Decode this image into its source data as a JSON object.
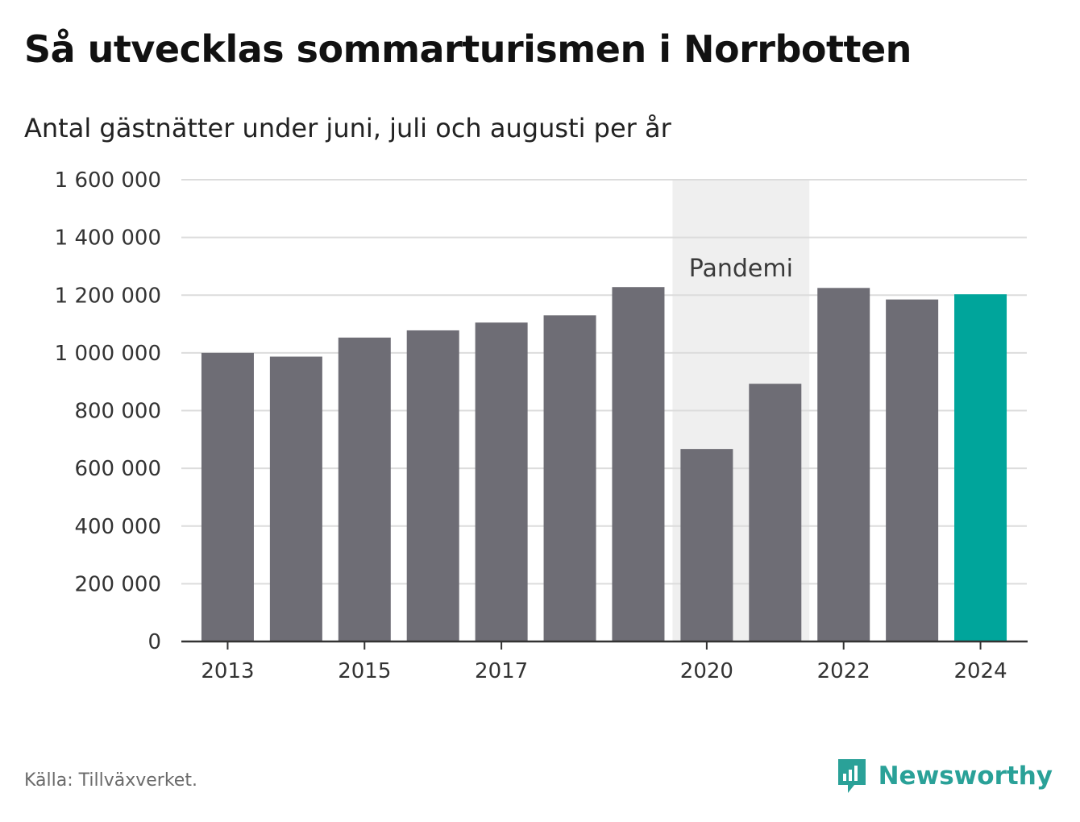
{
  "header": {
    "title": "Så utvecklas sommarturismen i Norrbotten",
    "subtitle": "Antal gästnätter under juni, juli och augusti per år"
  },
  "footer": {
    "source": "Källa: Tillväxverket.",
    "brand": "Newsworthy",
    "brand_icon": "bar-chart-speech-bubble-icon"
  },
  "colors": {
    "bar": "#6e6d75",
    "highlight": "#00a59b",
    "shade": "#efefef",
    "grid": "#dcdcdc",
    "axis": "#333333",
    "brand": "#2aa198"
  },
  "chart_data": {
    "type": "bar",
    "categories": [
      "2013",
      "2014",
      "2015",
      "2016",
      "2017",
      "2018",
      "2019",
      "2020",
      "2021",
      "2022",
      "2023",
      "2024"
    ],
    "values": [
      1000000,
      987000,
      1053000,
      1078000,
      1105000,
      1130000,
      1228000,
      667000,
      893000,
      1225000,
      1185000,
      1203000
    ],
    "highlight_category": "2024",
    "xtick_labels": [
      "2013",
      "2015",
      "2017",
      "2020",
      "2022",
      "2024"
    ],
    "ylim": [
      0,
      1600000
    ],
    "yticks": [
      0,
      200000,
      400000,
      600000,
      800000,
      1000000,
      1200000,
      1400000,
      1600000
    ],
    "ytick_labels": [
      "0",
      "200 000",
      "400 000",
      "600 000",
      "800 000",
      "1 000 000",
      "1 200 000",
      "1 400 000",
      "1 600 000"
    ],
    "grid": true,
    "legend": false,
    "xlabel": "",
    "ylabel": "",
    "annotations": [
      {
        "label": "Pandemi",
        "from": "2020",
        "to": "2021"
      }
    ]
  }
}
